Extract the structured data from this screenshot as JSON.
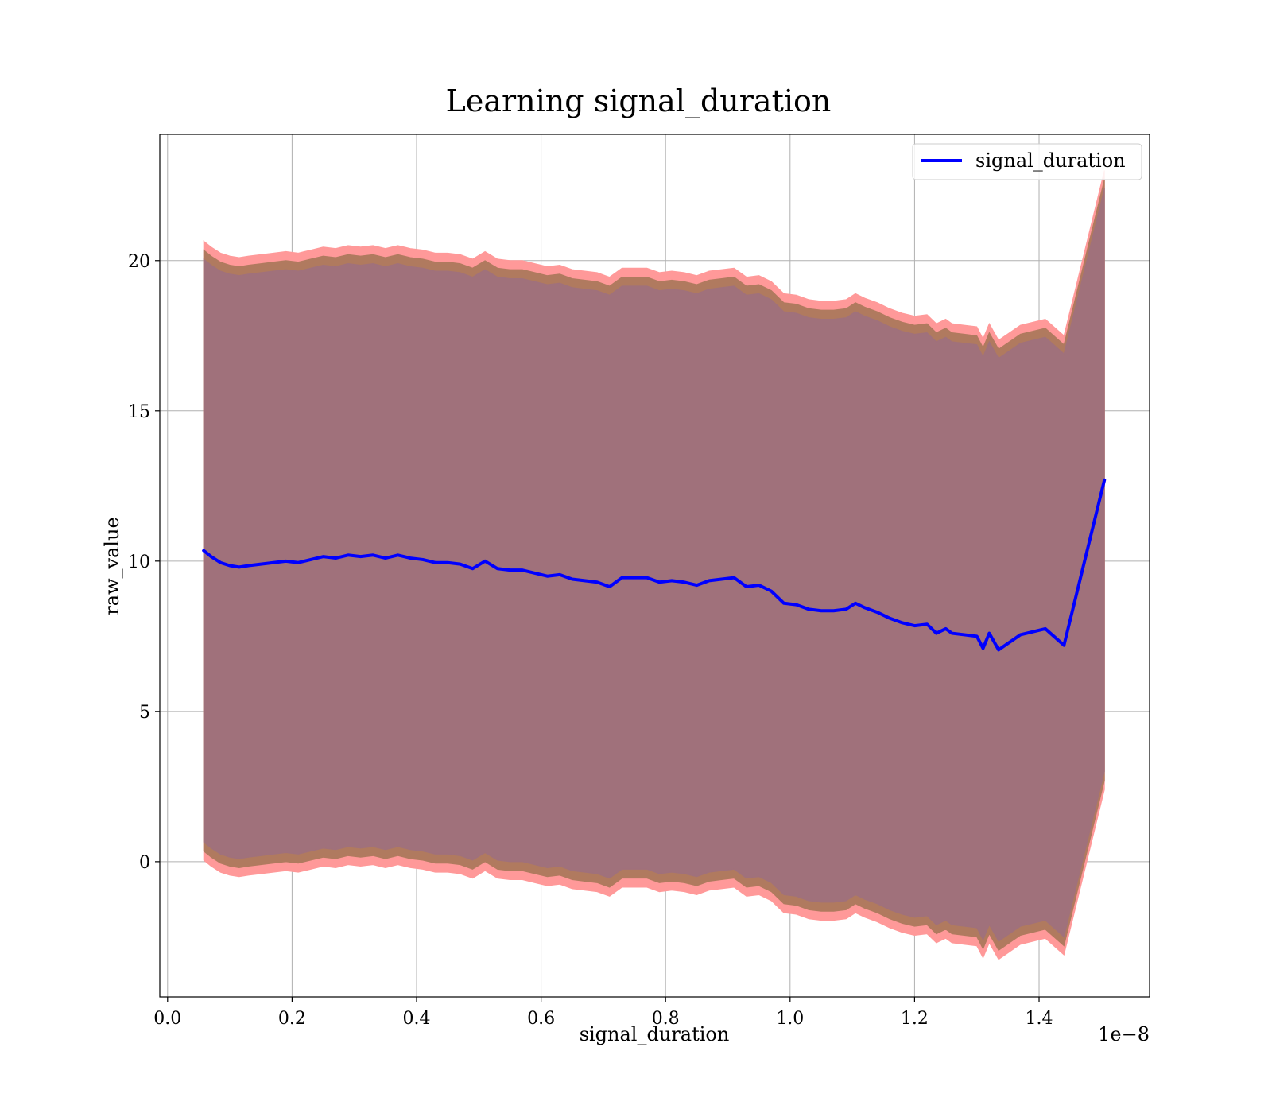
{
  "chart_data": {
    "type": "line",
    "title": "Learning signal_duration",
    "xlabel": "signal_duration",
    "ylabel": "raw_value",
    "x_offset_text": "1e−8",
    "xlim": [
      -0.0125,
      1.5775
    ],
    "ylim": [
      -4.5,
      24.2
    ],
    "xticks": [
      0.0,
      0.2,
      0.4,
      0.6,
      0.8,
      1.0,
      1.2,
      1.4
    ],
    "xtick_labels": [
      "0.0",
      "0.2",
      "0.4",
      "0.6",
      "0.8",
      "1.0",
      "1.2",
      "1.4"
    ],
    "yticks": [
      0,
      5,
      10,
      15,
      20
    ],
    "ytick_labels": [
      "0",
      "5",
      "10",
      "15",
      "20"
    ],
    "grid": true,
    "legend_position": "top-right",
    "colors": {
      "line": "#0000ff",
      "band_outer": "#ff9999",
      "band_mid": "#b07a5f",
      "band_inner": "#a0717b"
    },
    "series": [
      {
        "name": "signal_duration",
        "x": [
          0.058,
          0.07,
          0.085,
          0.1,
          0.115,
          0.13,
          0.15,
          0.17,
          0.19,
          0.21,
          0.23,
          0.25,
          0.27,
          0.29,
          0.31,
          0.33,
          0.35,
          0.37,
          0.39,
          0.41,
          0.43,
          0.45,
          0.47,
          0.49,
          0.51,
          0.53,
          0.55,
          0.57,
          0.59,
          0.61,
          0.63,
          0.65,
          0.67,
          0.69,
          0.71,
          0.73,
          0.75,
          0.77,
          0.79,
          0.81,
          0.83,
          0.85,
          0.87,
          0.89,
          0.91,
          0.93,
          0.95,
          0.97,
          0.99,
          1.01,
          1.03,
          1.05,
          1.07,
          1.09,
          1.105,
          1.12,
          1.14,
          1.16,
          1.18,
          1.2,
          1.22,
          1.235,
          1.25,
          1.26,
          1.28,
          1.3,
          1.31,
          1.32,
          1.335,
          1.37,
          1.41,
          1.44,
          1.505
        ],
        "y": [
          10.35,
          10.15,
          9.95,
          9.85,
          9.8,
          9.85,
          9.9,
          9.95,
          10.0,
          9.95,
          10.05,
          10.15,
          10.1,
          10.2,
          10.15,
          10.2,
          10.1,
          10.2,
          10.1,
          10.05,
          9.95,
          9.95,
          9.9,
          9.75,
          10.0,
          9.75,
          9.7,
          9.7,
          9.6,
          9.5,
          9.55,
          9.4,
          9.35,
          9.3,
          9.15,
          9.45,
          9.45,
          9.45,
          9.3,
          9.35,
          9.3,
          9.2,
          9.35,
          9.4,
          9.45,
          9.15,
          9.2,
          9.0,
          8.6,
          8.55,
          8.4,
          8.35,
          8.35,
          8.4,
          8.6,
          8.45,
          8.3,
          8.1,
          7.95,
          7.85,
          7.9,
          7.6,
          7.75,
          7.6,
          7.55,
          7.5,
          7.1,
          7.6,
          7.05,
          7.55,
          7.75,
          7.2,
          12.7
        ]
      }
    ],
    "band_halfwidths": {
      "outer": 10.3,
      "mid": 10.0,
      "inner": 9.7
    }
  }
}
